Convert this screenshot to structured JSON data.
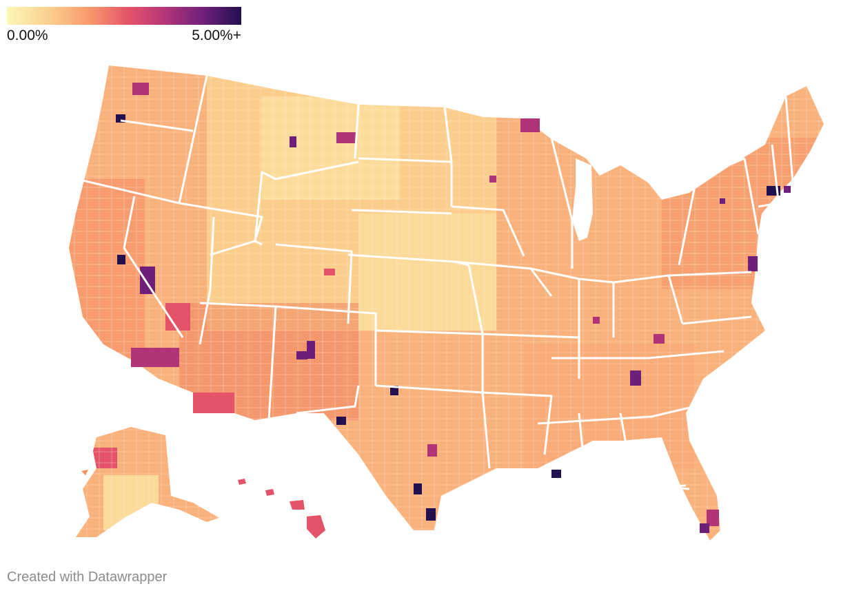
{
  "legend": {
    "min_label": "0.00%",
    "max_label": "5.00%+",
    "min_value": 0,
    "max_value": 5,
    "colors": [
      "#fcf7b8",
      "#fbd08f",
      "#f99a6c",
      "#e5536a",
      "#b23478",
      "#6e1f7a",
      "#23104f"
    ]
  },
  "map": {
    "type": "choropleth",
    "region": "United States counties",
    "base_fill": "#f9b27c",
    "border_color": "#ffffff"
  },
  "credit": "Created with Datawrapper"
}
